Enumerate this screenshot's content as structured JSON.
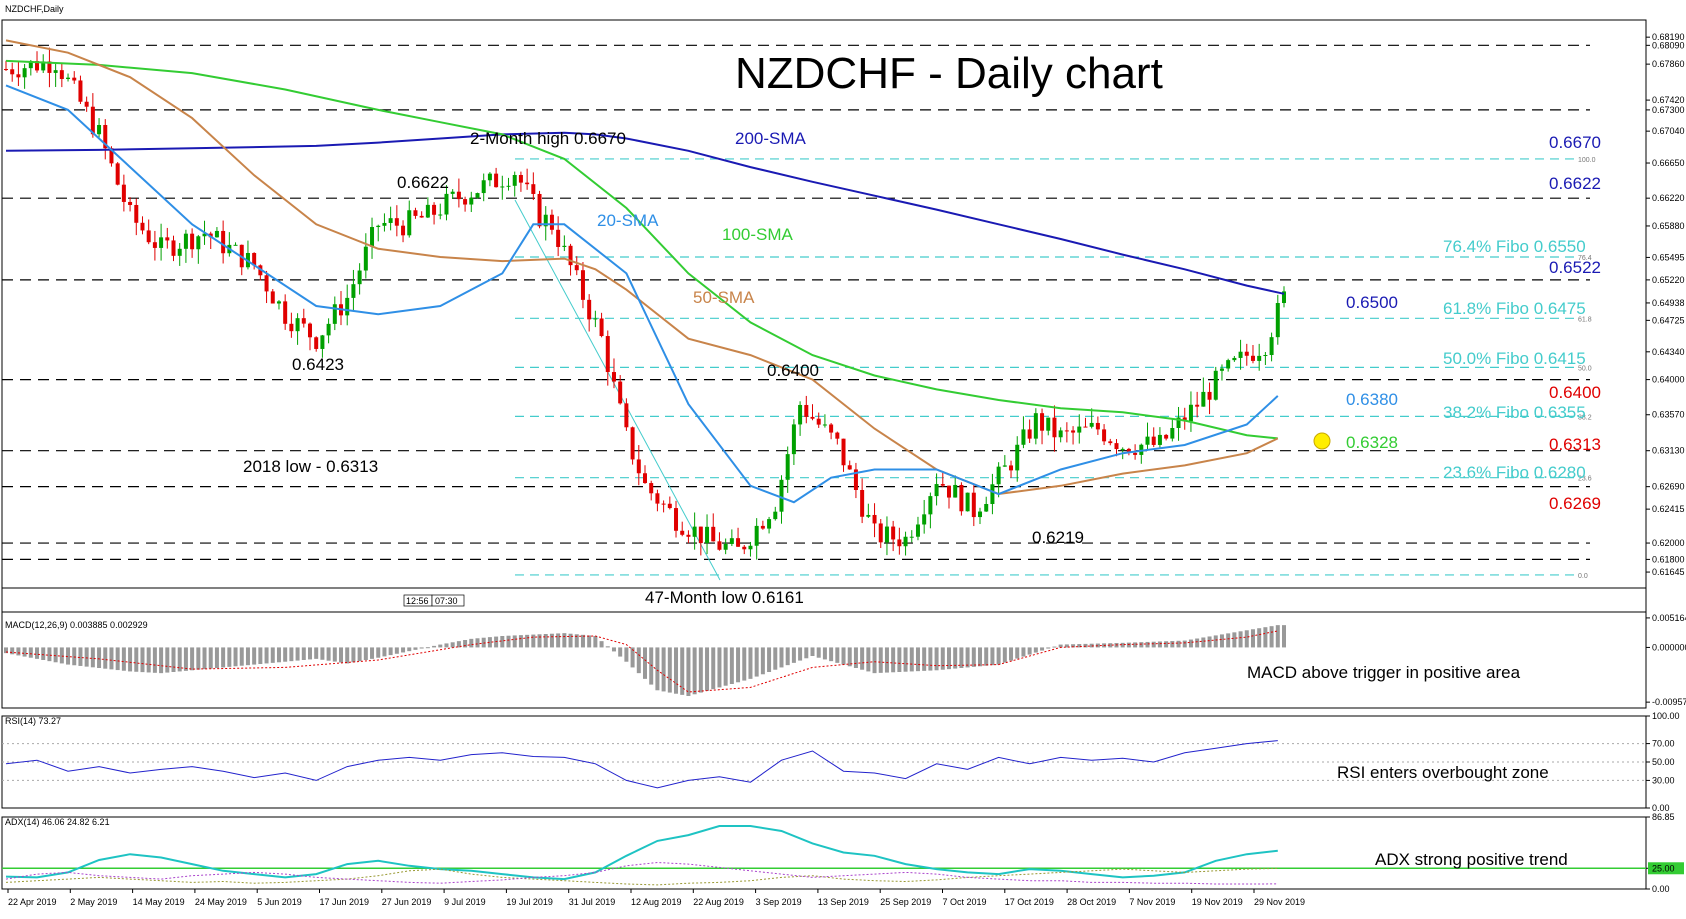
{
  "symbol_label": "NZDCHF,Daily",
  "time_box": [
    "12:56",
    "07:30"
  ],
  "chart_data": [
    {
      "type": "candlestick",
      "title": "NZDCHF - Daily chart",
      "ylim": [
        0.6145,
        0.684
      ],
      "y_ticks": [
        "0.68190",
        "0.68090",
        "0.67860",
        "0.67420",
        "0.67300",
        "0.67040",
        "0.66650",
        "0.66220",
        "0.65880",
        "0.65495",
        "0.65220",
        "0.64938",
        "0.64725",
        "0.64340",
        "0.64000",
        "0.63570",
        "0.63130",
        "0.62690",
        "0.62415",
        "0.62000",
        "0.61800",
        "0.61645"
      ],
      "y_tick_values": [
        0.6819,
        0.6809,
        0.6786,
        0.6742,
        0.673,
        0.6704,
        0.6665,
        0.6622,
        0.6588,
        0.65495,
        0.6522,
        0.64938,
        0.64725,
        0.6434,
        0.64,
        0.6357,
        0.6313,
        0.6269,
        0.62415,
        0.62,
        0.618,
        0.61645
      ],
      "x_ticks": [
        "22 Apr 2019",
        "2 May 2019",
        "14 May 2019",
        "24 May 2019",
        "5 Jun 2019",
        "17 Jun 2019",
        "27 Jun 2019",
        "9 Jul 2019",
        "19 Jul 2019",
        "31 Jul 2019",
        "12 Aug 2019",
        "22 Aug 2019",
        "3 Sep 2019",
        "13 Sep 2019",
        "25 Sep 2019",
        "7 Oct 2019",
        "17 Oct 2019",
        "28 Oct 2019",
        "7 Nov 2019",
        "19 Nov 2019",
        "29 Nov 2019"
      ],
      "colors": {
        "up": "#00a000",
        "down": "#e00000",
        "sma20": "#2f8fe6",
        "sma50": "#c8844a",
        "sma100": "#33cc33",
        "sma200": "#1a1ab3",
        "fibo": "#44cccc",
        "level": "#000000"
      },
      "fibo_ratios": [
        "100.0",
        "76.4",
        "61.8",
        "50.0",
        "38.2",
        "23.6",
        "0.0"
      ],
      "fibo_values": [
        0.667,
        0.655,
        0.6475,
        0.6415,
        0.6355,
        0.628,
        0.6161
      ],
      "horizontal_levels": [
        0.6809,
        0.673,
        0.6622,
        0.6522,
        0.64,
        0.6313,
        0.6269,
        0.62,
        0.618
      ],
      "series": [
        {
          "name": "200-SMA",
          "x": [
            0,
            15,
            30,
            50,
            60,
            70,
            80,
            90,
            95,
            100,
            110,
            120,
            130,
            140,
            150,
            160,
            170,
            180,
            190,
            200,
            206
          ],
          "y": [
            0.668,
            0.6681,
            0.6683,
            0.6686,
            0.669,
            0.6695,
            0.67,
            0.6702,
            0.67,
            0.6695,
            0.668,
            0.666,
            0.6642,
            0.6625,
            0.6608,
            0.659,
            0.6572,
            0.6553,
            0.6535,
            0.6515,
            0.6505
          ]
        },
        {
          "name": "100-SMA",
          "x": [
            0,
            15,
            30,
            45,
            60,
            70,
            80,
            90,
            100,
            110,
            120,
            130,
            140,
            150,
            160,
            170,
            180,
            190,
            200,
            205
          ],
          "y": [
            0.679,
            0.6785,
            0.6775,
            0.6755,
            0.673,
            0.6715,
            0.67,
            0.667,
            0.661,
            0.653,
            0.647,
            0.643,
            0.6405,
            0.6388,
            0.6375,
            0.6365,
            0.636,
            0.635,
            0.6332,
            0.6328
          ]
        },
        {
          "name": "50-SMA",
          "x": [
            0,
            10,
            20,
            30,
            40,
            50,
            60,
            70,
            80,
            90,
            95,
            100,
            110,
            120,
            130,
            140,
            150,
            160,
            170,
            180,
            190,
            200,
            205
          ],
          "y": [
            0.6815,
            0.68,
            0.677,
            0.672,
            0.665,
            0.659,
            0.656,
            0.655,
            0.6545,
            0.6548,
            0.6535,
            0.651,
            0.645,
            0.643,
            0.64,
            0.634,
            0.629,
            0.626,
            0.627,
            0.6285,
            0.6295,
            0.631,
            0.6328
          ]
        },
        {
          "name": "20-SMA",
          "x": [
            0,
            10,
            20,
            30,
            40,
            50,
            60,
            65,
            70,
            80,
            85,
            90,
            100,
            110,
            120,
            127,
            133,
            140,
            150,
            160,
            170,
            180,
            190,
            200,
            205
          ],
          "y": [
            0.676,
            0.673,
            0.666,
            0.659,
            0.654,
            0.649,
            0.648,
            0.6485,
            0.649,
            0.653,
            0.659,
            0.659,
            0.653,
            0.637,
            0.627,
            0.625,
            0.628,
            0.629,
            0.629,
            0.626,
            0.629,
            0.631,
            0.632,
            0.6345,
            0.638
          ]
        }
      ]
    },
    {
      "type": "histogram",
      "label": "MACD(12,26,9) 0.003885 0.002929",
      "y_ticks": [
        "0.005164",
        "0.000000",
        "-0.009575"
      ],
      "y_tick_values": [
        0.005164,
        0,
        -0.009575
      ],
      "ylim": [
        -0.0106,
        0.0062
      ],
      "hist_x": [
        0,
        10,
        20,
        25,
        30,
        40,
        50,
        55,
        60,
        70,
        75,
        80,
        90,
        95,
        100,
        105,
        110,
        120,
        130,
        140,
        150,
        160,
        170,
        180,
        190,
        200,
        205
      ],
      "hist_y": [
        -0.001,
        -0.003,
        -0.0042,
        -0.0045,
        -0.004,
        -0.003,
        -0.002,
        -0.0028,
        -0.0018,
        0.0005,
        0.0015,
        0.002,
        0.0025,
        0.002,
        -0.0025,
        -0.0075,
        -0.0085,
        -0.0055,
        -0.0015,
        -0.0045,
        -0.004,
        -0.003,
        0.0005,
        0.0008,
        0.0012,
        0.003,
        0.0039
      ],
      "signal_x": [
        0,
        15,
        30,
        45,
        60,
        75,
        85,
        95,
        100,
        105,
        110,
        120,
        130,
        140,
        150,
        160,
        170,
        180,
        190,
        200,
        205
      ],
      "signal_y": [
        -0.0008,
        -0.002,
        -0.0038,
        -0.0035,
        -0.0022,
        0.0005,
        0.0018,
        0.002,
        0.0005,
        -0.004,
        -0.0078,
        -0.007,
        -0.0035,
        -0.0025,
        -0.0032,
        -0.003,
        0.0,
        0.0005,
        0.0008,
        0.0018,
        0.0029
      ]
    },
    {
      "type": "line",
      "label": "RSI(14) 73.27",
      "y_ticks": [
        "100.00",
        "70.00",
        "50.00",
        "30.00",
        "0.00"
      ],
      "y_tick_values": [
        100,
        70,
        50,
        30,
        0
      ],
      "ylim": [
        0,
        100
      ],
      "x": [
        0,
        5,
        10,
        15,
        20,
        25,
        30,
        35,
        40,
        45,
        50,
        55,
        60,
        65,
        70,
        75,
        80,
        85,
        90,
        95,
        100,
        105,
        110,
        115,
        120,
        125,
        130,
        135,
        140,
        145,
        150,
        155,
        160,
        165,
        170,
        175,
        180,
        185,
        190,
        195,
        200,
        205
      ],
      "y": [
        48,
        52,
        40,
        45,
        38,
        42,
        45,
        40,
        33,
        38,
        30,
        45,
        52,
        55,
        52,
        58,
        60,
        56,
        55,
        48,
        30,
        22,
        30,
        34,
        28,
        52,
        62,
        40,
        38,
        32,
        48,
        42,
        55,
        48,
        55,
        52,
        54,
        50,
        60,
        65,
        70,
        73.27
      ]
    },
    {
      "type": "line",
      "label": "ADX(14) 46.06 24.82 6.21",
      "y_ticks": [
        "86.85",
        "25.00",
        "0.00"
      ],
      "y_tick_values": [
        86.85,
        25,
        0
      ],
      "ylim": [
        0,
        86.85
      ],
      "adx_x": [
        0,
        5,
        10,
        15,
        20,
        25,
        30,
        35,
        40,
        45,
        50,
        55,
        60,
        65,
        70,
        75,
        80,
        85,
        90,
        95,
        100,
        105,
        110,
        115,
        120,
        125,
        130,
        135,
        140,
        145,
        150,
        155,
        160,
        165,
        170,
        175,
        180,
        185,
        190,
        195,
        200,
        205
      ],
      "adx_y": [
        15,
        14,
        20,
        35,
        42,
        38,
        30,
        22,
        18,
        14,
        18,
        30,
        34,
        28,
        24,
        22,
        18,
        14,
        12,
        20,
        40,
        58,
        65,
        76,
        76,
        70,
        55,
        44,
        40,
        30,
        24,
        20,
        18,
        24,
        22,
        18,
        14,
        16,
        20,
        34,
        42,
        46.06
      ],
      "di_plus_y": [
        8,
        10,
        12,
        14,
        12,
        10,
        8,
        9,
        7,
        8,
        10,
        12,
        16,
        22,
        24,
        18,
        14,
        12,
        10,
        8,
        6,
        5,
        7,
        8,
        10,
        14,
        16,
        12,
        10,
        9,
        11,
        14,
        16,
        18,
        20,
        22,
        24,
        22,
        20,
        22,
        24,
        24.82
      ],
      "di_minus_y": [
        12,
        18,
        20,
        16,
        14,
        12,
        16,
        18,
        20,
        18,
        14,
        12,
        10,
        8,
        7,
        9,
        11,
        14,
        16,
        20,
        28,
        32,
        30,
        26,
        22,
        18,
        14,
        16,
        18,
        20,
        18,
        14,
        12,
        10,
        10,
        8,
        8,
        7,
        7,
        6,
        6,
        6.21
      ]
    }
  ],
  "annotations": {
    "two_month_high": "2-Month high 0.6670",
    "sma200_label": "200-SMA",
    "sma100_label": "100-SMA",
    "sma20_label": "20-SMA",
    "sma50_label": "50-SMA",
    "p6622": "0.6622",
    "p6423": "0.6423",
    "p6400": "0.6400",
    "low2018": "2018 low - 0.6313",
    "low47": "47-Month low 0.6161",
    "p6219": "0.6219",
    "r6670": "0.6670",
    "r6622": "0.6622",
    "f764": "76.4% Fibo 0.6550",
    "r6522": "0.6522",
    "r6500": "0.6500",
    "f618": "61.8% Fibo 0.6475",
    "f500": "50.0% Fibo 0.6415",
    "r6400": "0.6400",
    "r6380": "0.6380",
    "f382": "38.2% Fibo 0.6355",
    "r6328": "0.6328",
    "r6313": "0.6313",
    "f236": "23.6% Fibo 0.6280",
    "r6269": "0.6269",
    "macd_note": "MACD above trigger in positive area",
    "rsi_note": "RSI enters overbought zone",
    "adx_note": "ADX strong positive trend"
  }
}
